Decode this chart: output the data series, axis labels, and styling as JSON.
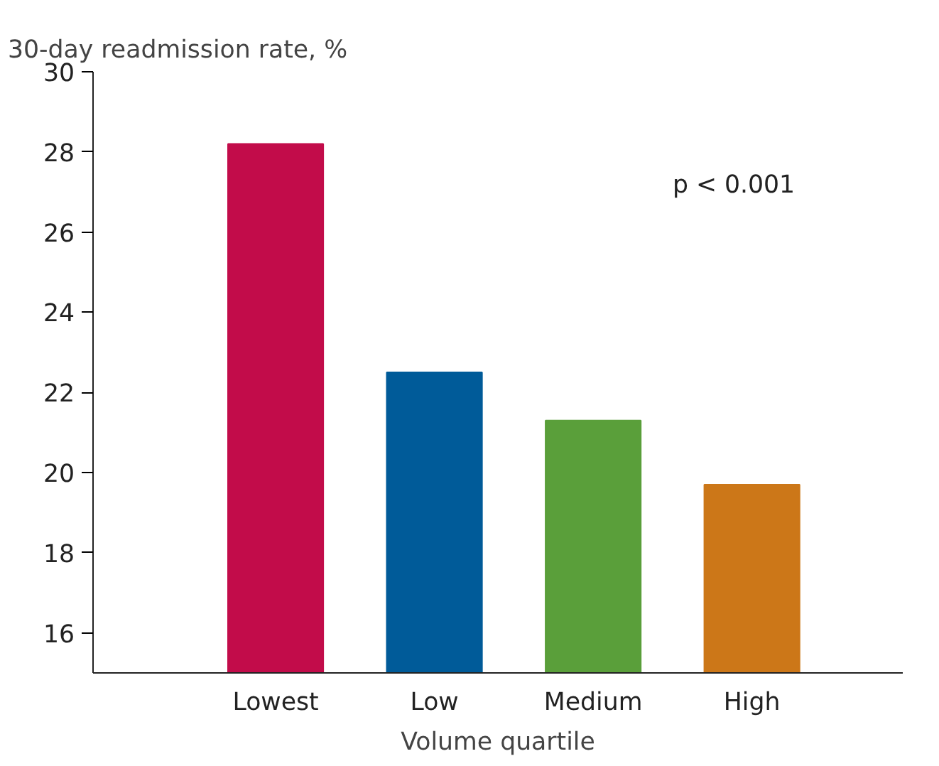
{
  "chart_data": {
    "type": "bar",
    "ylabel": "30-day readmission rate, %",
    "xlabel": "Volume quartile",
    "categories": [
      "Lowest",
      "Low",
      "Medium",
      "High"
    ],
    "values": [
      28.2,
      22.5,
      21.3,
      19.7
    ],
    "colors": [
      "#c20c4a",
      "#005b99",
      "#5a9f3a",
      "#cc7718"
    ],
    "ylim": [
      15,
      30
    ],
    "yticks": [
      16,
      18,
      20,
      22,
      24,
      26,
      28,
      30
    ],
    "grid": false,
    "annotations": [
      "p < 0.001"
    ]
  }
}
